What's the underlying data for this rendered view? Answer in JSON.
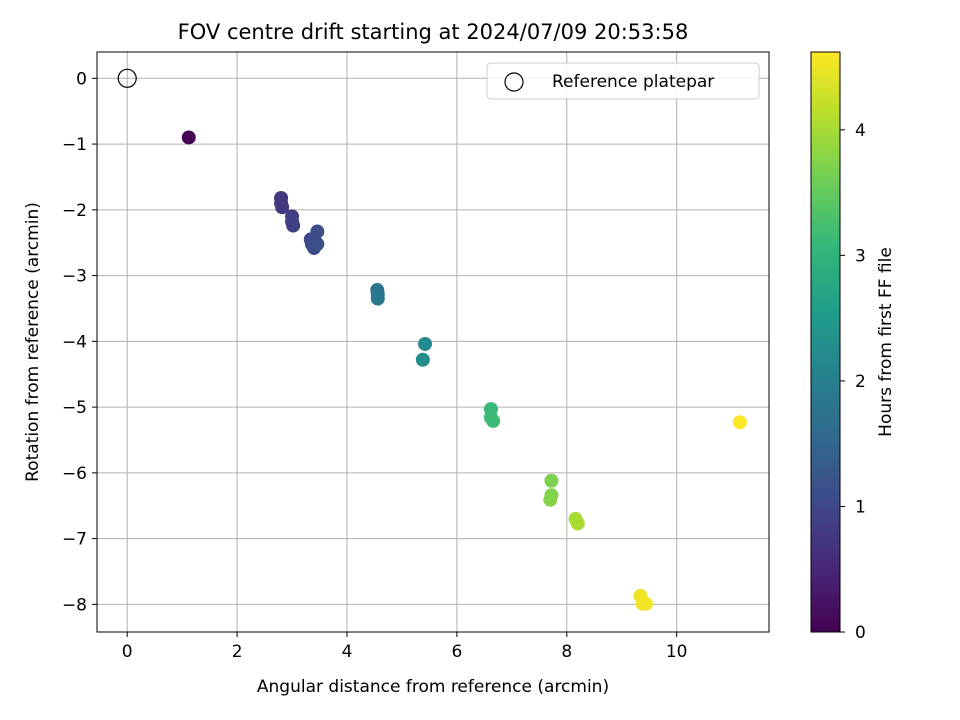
{
  "chart_data": {
    "type": "scatter",
    "title": "FOV centre drift starting at 2024/07/09 20:53:58",
    "xlabel": "Angular distance from reference (arcmin)",
    "ylabel": "Rotation from reference (arcmin)",
    "xlim": [
      -0.55,
      11.68
    ],
    "ylim": [
      -8.42,
      0.4
    ],
    "xticks": [
      0,
      2,
      4,
      6,
      8,
      10
    ],
    "yticks": [
      0,
      -1,
      -2,
      -3,
      -4,
      -5,
      -6,
      -7,
      -8
    ],
    "grid": true,
    "legend": {
      "placement": "top-right",
      "entries": [
        "Reference platepar"
      ]
    },
    "reference": {
      "name": "Reference platepar",
      "x": 0,
      "y": 0,
      "marker": "open-circle"
    },
    "colorbar": {
      "label": "Hours from first FF file",
      "range": [
        0,
        4.62
      ],
      "ticks": [
        0,
        1,
        2,
        3,
        4
      ],
      "colormap": [
        "#440154",
        "#482878",
        "#3e4989",
        "#31688e",
        "#26828e",
        "#1f9e89",
        "#35b779",
        "#6ece58",
        "#b5de2b",
        "#fde725"
      ]
    },
    "points": [
      {
        "x": 1.12,
        "y": -0.9,
        "hours": 0.02
      },
      {
        "x": 2.8,
        "y": -1.82,
        "hours": 0.75
      },
      {
        "x": 2.8,
        "y": -1.9,
        "hours": 0.78
      },
      {
        "x": 2.82,
        "y": -1.96,
        "hours": 0.8
      },
      {
        "x": 3.0,
        "y": -2.1,
        "hours": 0.85
      },
      {
        "x": 3.0,
        "y": -2.18,
        "hours": 0.88
      },
      {
        "x": 3.02,
        "y": -2.24,
        "hours": 0.9
      },
      {
        "x": 3.34,
        "y": -2.45,
        "hours": 1.0
      },
      {
        "x": 3.36,
        "y": -2.52,
        "hours": 1.02
      },
      {
        "x": 3.4,
        "y": -2.58,
        "hours": 1.05
      },
      {
        "x": 3.42,
        "y": -2.48,
        "hours": 1.07
      },
      {
        "x": 3.46,
        "y": -2.33,
        "hours": 1.1
      },
      {
        "x": 3.46,
        "y": -2.52,
        "hours": 1.12
      },
      {
        "x": 4.55,
        "y": -3.22,
        "hours": 1.8
      },
      {
        "x": 4.56,
        "y": -3.28,
        "hours": 1.82
      },
      {
        "x": 4.56,
        "y": -3.35,
        "hours": 1.85
      },
      {
        "x": 5.42,
        "y": -4.04,
        "hours": 2.2
      },
      {
        "x": 5.38,
        "y": -4.28,
        "hours": 2.25
      },
      {
        "x": 6.62,
        "y": -5.03,
        "hours": 3.1
      },
      {
        "x": 6.62,
        "y": -5.16,
        "hours": 3.12
      },
      {
        "x": 6.66,
        "y": -5.21,
        "hours": 3.15
      },
      {
        "x": 7.72,
        "y": -6.12,
        "hours": 3.7
      },
      {
        "x": 7.72,
        "y": -6.34,
        "hours": 3.72
      },
      {
        "x": 7.7,
        "y": -6.41,
        "hours": 3.75
      },
      {
        "x": 8.16,
        "y": -6.7,
        "hours": 4.0
      },
      {
        "x": 8.2,
        "y": -6.77,
        "hours": 4.02
      },
      {
        "x": 9.34,
        "y": -7.87,
        "hours": 4.5
      },
      {
        "x": 9.38,
        "y": -7.99,
        "hours": 4.52
      },
      {
        "x": 9.44,
        "y": -7.99,
        "hours": 4.55
      },
      {
        "x": 11.15,
        "y": -5.23,
        "hours": 4.62
      }
    ]
  }
}
